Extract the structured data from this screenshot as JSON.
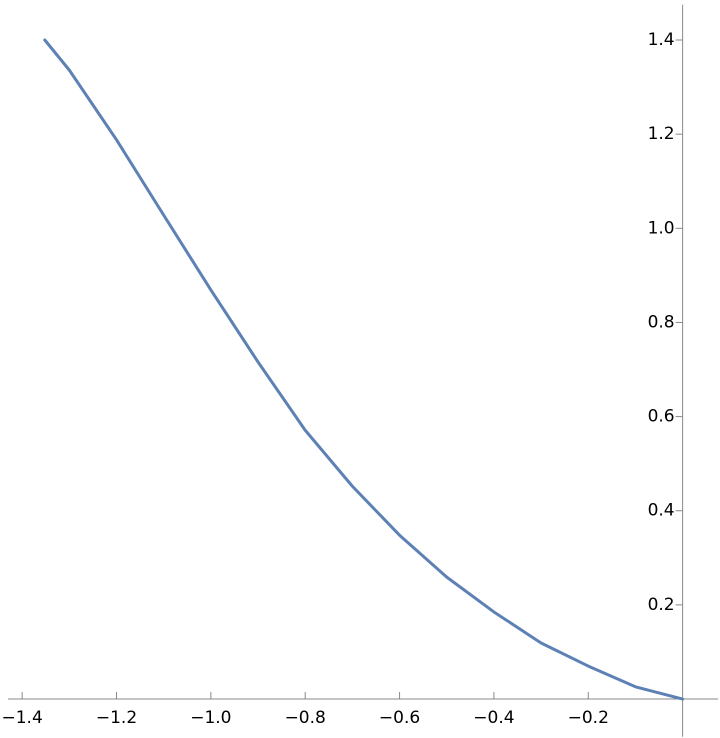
{
  "chart_data": {
    "type": "line",
    "x": [
      -1.352,
      -1.3,
      -1.2,
      -1.1,
      -1.0,
      -0.9,
      -0.8,
      -0.7,
      -0.6,
      -0.5,
      -0.4,
      -0.3,
      -0.2,
      -0.1,
      0
    ],
    "series": [
      {
        "color": "#5e81b5",
        "values": [
          1.4,
          1.336,
          1.188,
          1.028,
          0.869,
          0.716,
          0.571,
          0.452,
          0.348,
          0.259,
          0.185,
          0.119,
          0.07,
          0.026,
          0
        ]
      }
    ],
    "xlim": [
      -1.43,
      0.075
    ],
    "ylim": [
      -0.08,
      1.475
    ],
    "xticks": [
      {
        "value": -1.4,
        "label": "−1.4"
      },
      {
        "value": -1.2,
        "label": "−1.2"
      },
      {
        "value": -1.0,
        "label": "−1.0"
      },
      {
        "value": -0.8,
        "label": "−0.8"
      },
      {
        "value": -0.6,
        "label": "−0.6"
      },
      {
        "value": -0.4,
        "label": "−0.4"
      },
      {
        "value": -0.2,
        "label": "−0.2"
      }
    ],
    "yticks": [
      0.2,
      0.4,
      0.6,
      0.8,
      {
        "value": 1,
        "label": "1.0"
      },
      1.2,
      1.4
    ]
  }
}
